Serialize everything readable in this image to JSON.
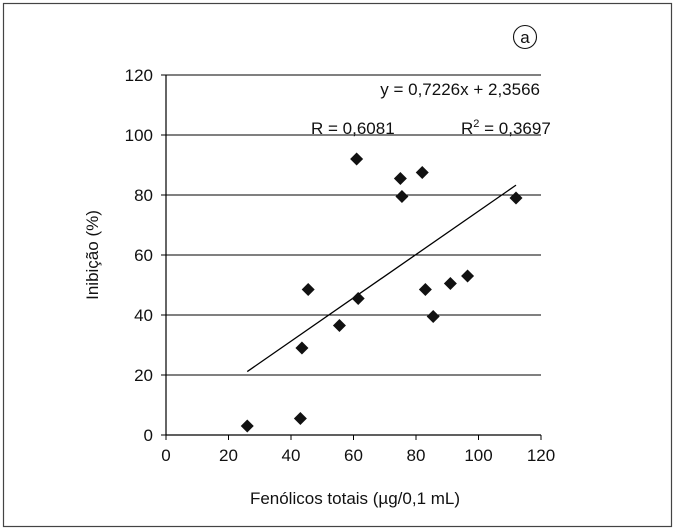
{
  "chart_data": {
    "type": "scatter",
    "panel_label": "a",
    "xlabel": "Fenólicos totais (µg/0,1 mL)",
    "ylabel": "Inibição (%)",
    "xlim": [
      0,
      120
    ],
    "ylim": [
      0,
      120
    ],
    "xticks": [
      0,
      20,
      40,
      60,
      80,
      100,
      120
    ],
    "yticks": [
      0,
      20,
      40,
      60,
      80,
      100,
      120
    ],
    "grid": "horizontal",
    "series": [
      {
        "marker": "diamond",
        "x": [
          26,
          43,
          43.5,
          45.5,
          55.5,
          61,
          61.5,
          75,
          75.5,
          82,
          83,
          85.5,
          91,
          96.5,
          112
        ],
        "y": [
          3,
          5.5,
          29,
          48.5,
          36.5,
          92,
          45.5,
          85.5,
          79.5,
          87.5,
          48.5,
          39.5,
          50.5,
          53,
          79
        ]
      }
    ],
    "trendline": {
      "slope": 0.7226,
      "intercept": 2.3566,
      "x_range": [
        26,
        112
      ],
      "equation_label": "y  = 0,7226x + 2,3566",
      "r_label": "R = 0,6081",
      "r2_label_prefix": "R",
      "r2_label_sup": "2",
      "r2_label_value": " = 0,3697"
    }
  },
  "colors": {
    "frame": "#444444",
    "grid": "#000000",
    "marker": "#111111"
  }
}
